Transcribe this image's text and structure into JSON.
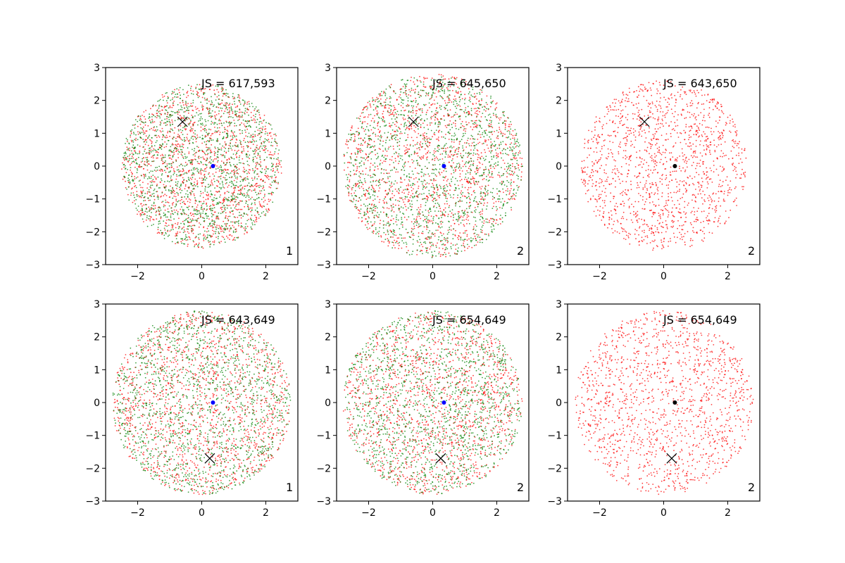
{
  "chart_data": [
    {
      "type": "scatter",
      "annotation": "JS = 617,593",
      "panel_label": "1",
      "xlim": [
        -3,
        3
      ],
      "ylim": [
        -3,
        3
      ],
      "xticks": [
        "−2",
        "0",
        "2"
      ],
      "yticks": [
        "3",
        "2",
        "1",
        "0",
        "−1",
        "−2",
        "−3"
      ],
      "grid": false,
      "series": [
        {
          "type": "scatter",
          "color": "#ff0000",
          "marker": "dot",
          "n_points": 1500,
          "distribution": "uniform-disk",
          "center": [
            0,
            0
          ],
          "radius": 2.5
        },
        {
          "type": "scatter",
          "color": "#008000",
          "marker": "dot",
          "n_points": 1500,
          "distribution": "uniform-disk",
          "center": [
            0,
            0
          ],
          "radius": 2.5
        }
      ],
      "center_marker": {
        "x": 0.35,
        "y": 0,
        "color": "#0000ff"
      },
      "x_marker": {
        "x": -0.6,
        "y": 1.35,
        "marker": "x",
        "color": "#000000"
      }
    },
    {
      "type": "scatter",
      "annotation": "JS = 645,650",
      "panel_label": "2",
      "xlim": [
        -3,
        3
      ],
      "ylim": [
        -3,
        3
      ],
      "xticks": [
        "−2",
        "0",
        "2"
      ],
      "yticks": [
        "3",
        "2",
        "1",
        "0",
        "−1",
        "−2",
        "−3"
      ],
      "grid": false,
      "series": [
        {
          "type": "scatter",
          "color": "#ff0000",
          "marker": "dot",
          "n_points": 1500,
          "distribution": "uniform-disk",
          "center": [
            0,
            0
          ],
          "radius": 2.8
        },
        {
          "type": "scatter",
          "color": "#008000",
          "marker": "dot",
          "n_points": 1500,
          "distribution": "uniform-disk",
          "center": [
            0,
            0
          ],
          "radius": 2.8
        }
      ],
      "center_marker": {
        "x": 0.35,
        "y": 0,
        "color": "#0000ff"
      },
      "x_marker": {
        "x": -0.6,
        "y": 1.35,
        "marker": "x",
        "color": "#000000"
      }
    },
    {
      "type": "scatter",
      "annotation": "JS = 643,650",
      "panel_label": "2",
      "xlim": [
        -3,
        3
      ],
      "ylim": [
        -3,
        3
      ],
      "xticks": [
        "−2",
        "0",
        "2"
      ],
      "yticks": [
        "3",
        "2",
        "1",
        "0",
        "−1",
        "−2",
        "−3"
      ],
      "grid": false,
      "series": [
        {
          "type": "scatter",
          "color": "#ff0000",
          "marker": "dot",
          "n_points": 1500,
          "distribution": "uniform-disk",
          "center": [
            0,
            0
          ],
          "radius": 2.6
        }
      ],
      "center_marker": {
        "x": 0.35,
        "y": 0,
        "color": "#000000"
      },
      "x_marker": {
        "x": -0.6,
        "y": 1.35,
        "marker": "x",
        "color": "#000000"
      }
    },
    {
      "type": "scatter",
      "annotation": "JS = 643,649",
      "panel_label": "1",
      "xlim": [
        -3,
        3
      ],
      "ylim": [
        -3,
        3
      ],
      "xticks": [
        "−2",
        "0",
        "2"
      ],
      "yticks": [
        "3",
        "2",
        "1",
        "0",
        "−1",
        "−2",
        "−3"
      ],
      "grid": false,
      "series": [
        {
          "type": "scatter",
          "color": "#ff0000",
          "marker": "dot",
          "n_points": 1500,
          "distribution": "uniform-disk",
          "center": [
            0,
            0
          ],
          "radius": 2.8
        },
        {
          "type": "scatter",
          "color": "#008000",
          "marker": "dot",
          "n_points": 1500,
          "distribution": "uniform-disk",
          "center": [
            0,
            0
          ],
          "radius": 2.8
        }
      ],
      "center_marker": {
        "x": 0.35,
        "y": 0,
        "color": "#0000ff"
      },
      "x_marker": {
        "x": 0.25,
        "y": -1.7,
        "marker": "x",
        "color": "#000000"
      }
    },
    {
      "type": "scatter",
      "annotation": "JS = 654,649",
      "panel_label": "2",
      "xlim": [
        -3,
        3
      ],
      "ylim": [
        -3,
        3
      ],
      "xticks": [
        "−2",
        "0",
        "2"
      ],
      "yticks": [
        "3",
        "2",
        "1",
        "0",
        "−1",
        "−2",
        "−3"
      ],
      "grid": false,
      "series": [
        {
          "type": "scatter",
          "color": "#ff0000",
          "marker": "dot",
          "n_points": 1500,
          "distribution": "uniform-disk",
          "center": [
            0,
            0
          ],
          "radius": 2.8
        },
        {
          "type": "scatter",
          "color": "#008000",
          "marker": "dot",
          "n_points": 1500,
          "distribution": "uniform-disk",
          "center": [
            0,
            0
          ],
          "radius": 2.8
        }
      ],
      "center_marker": {
        "x": 0.35,
        "y": 0,
        "color": "#0000ff"
      },
      "x_marker": {
        "x": 0.25,
        "y": -1.7,
        "marker": "x",
        "color": "#000000"
      }
    },
    {
      "type": "scatter",
      "annotation": "JS = 654,649",
      "panel_label": "2",
      "xlim": [
        -3,
        3
      ],
      "ylim": [
        -3,
        3
      ],
      "xticks": [
        "−2",
        "0",
        "2"
      ],
      "yticks": [
        "3",
        "2",
        "1",
        "0",
        "−1",
        "−2",
        "−3"
      ],
      "grid": false,
      "series": [
        {
          "type": "scatter",
          "color": "#ff0000",
          "marker": "dot",
          "n_points": 1500,
          "distribution": "uniform-disk",
          "center": [
            0,
            0
          ],
          "radius": 2.8
        }
      ],
      "center_marker": {
        "x": 0.35,
        "y": 0,
        "color": "#000000"
      },
      "x_marker": {
        "x": 0.25,
        "y": -1.7,
        "marker": "x",
        "color": "#000000"
      }
    }
  ]
}
